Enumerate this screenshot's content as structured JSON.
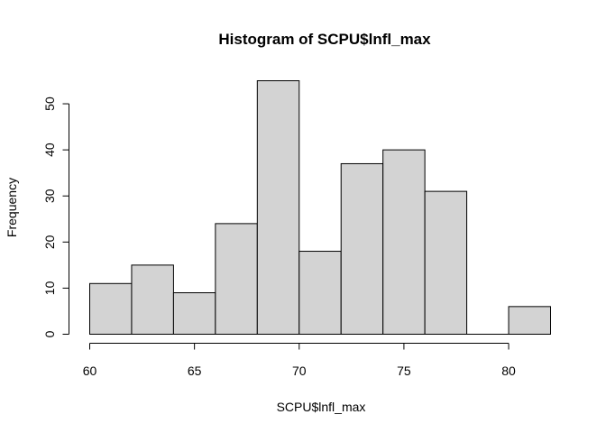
{
  "chart_data": {
    "type": "bar",
    "title": "Histogram of SCPU$lnfl_max",
    "xlabel": "SCPU$lnfl_max",
    "ylabel": "Frequency",
    "bins": [
      {
        "from": 60,
        "to": 62,
        "count": 11
      },
      {
        "from": 62,
        "to": 64,
        "count": 15
      },
      {
        "from": 64,
        "to": 66,
        "count": 9
      },
      {
        "from": 66,
        "to": 68,
        "count": 24
      },
      {
        "from": 68,
        "to": 70,
        "count": 55
      },
      {
        "from": 70,
        "to": 72,
        "count": 18
      },
      {
        "from": 72,
        "to": 74,
        "count": 37
      },
      {
        "from": 74,
        "to": 76,
        "count": 40
      },
      {
        "from": 76,
        "to": 78,
        "count": 31
      },
      {
        "from": 78,
        "to": 80,
        "count": 0
      },
      {
        "from": 80,
        "to": 82,
        "count": 6
      }
    ],
    "xlim": [
      60,
      82
    ],
    "ylim": [
      0,
      55
    ],
    "x_ticks": [
      60,
      65,
      70,
      75,
      80
    ],
    "y_ticks": [
      0,
      10,
      20,
      30,
      40,
      50
    ],
    "bar_fill": "#d3d3d3",
    "bar_stroke": "#000000",
    "grid": false
  }
}
